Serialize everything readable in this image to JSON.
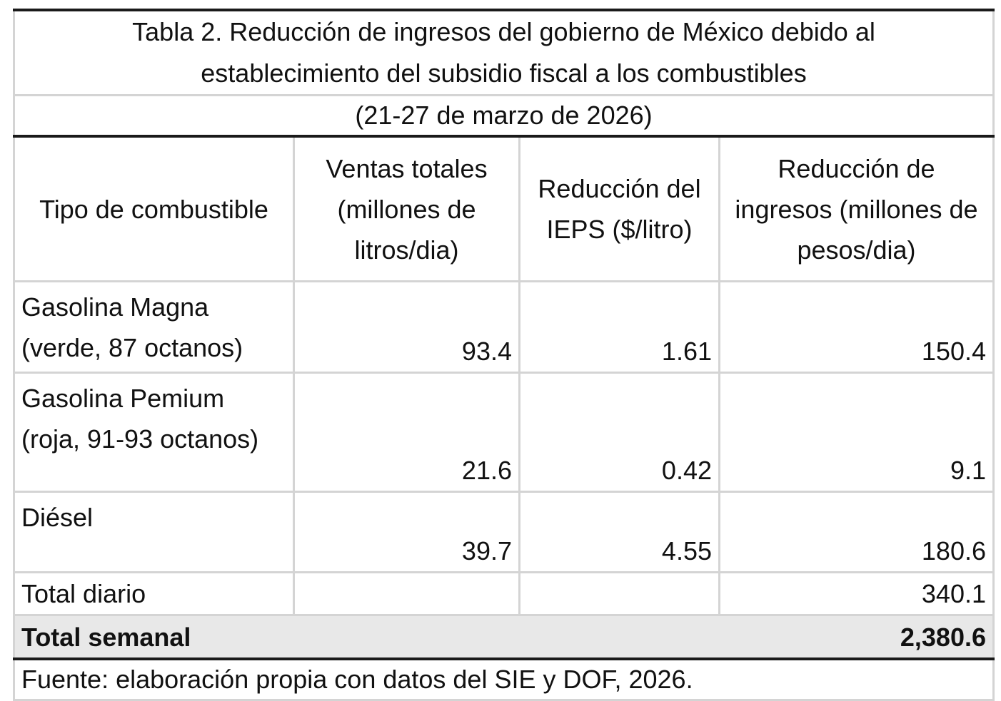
{
  "table": {
    "title_line1": "Tabla 2. Reducción de ingresos del gobierno de México debido al",
    "title_line2": "establecimiento del subsidio fiscal a los combustibles",
    "subtitle": "(21-27 de marzo de 2026)",
    "headers": {
      "fuel_type": "Tipo de combustible",
      "sales_line1": "Ventas totales",
      "sales_line2": "(millones de",
      "sales_line3": "litros/dia)",
      "ieps_line1": "Reducción del",
      "ieps_line2": "IEPS ($/litro)",
      "revenue_line1": "Reducción de",
      "revenue_line2": "ingresos (millones de",
      "revenue_line3": "pesos/dia)"
    },
    "rows": [
      {
        "name_line1": "Gasolina Magna",
        "name_line2": "(verde, 87 octanos)",
        "sales": "93.4",
        "ieps": "1.61",
        "revenue": "150.4"
      },
      {
        "name_line1": "Gasolina Pemium",
        "name_line2": "(roja, 91-93 octanos)",
        "sales": "21.6",
        "ieps": "0.42",
        "revenue": "9.1"
      },
      {
        "name_line1": "Diésel",
        "sales": "39.7",
        "ieps": "4.55",
        "revenue": "180.6"
      }
    ],
    "total_daily": {
      "label": "Total diario",
      "revenue": "340.1"
    },
    "total_weekly": {
      "label": "Total semanal",
      "revenue": "2,380.6"
    },
    "source": "Fuente: elaboración propia con datos del SIE y DOF, 2026."
  }
}
